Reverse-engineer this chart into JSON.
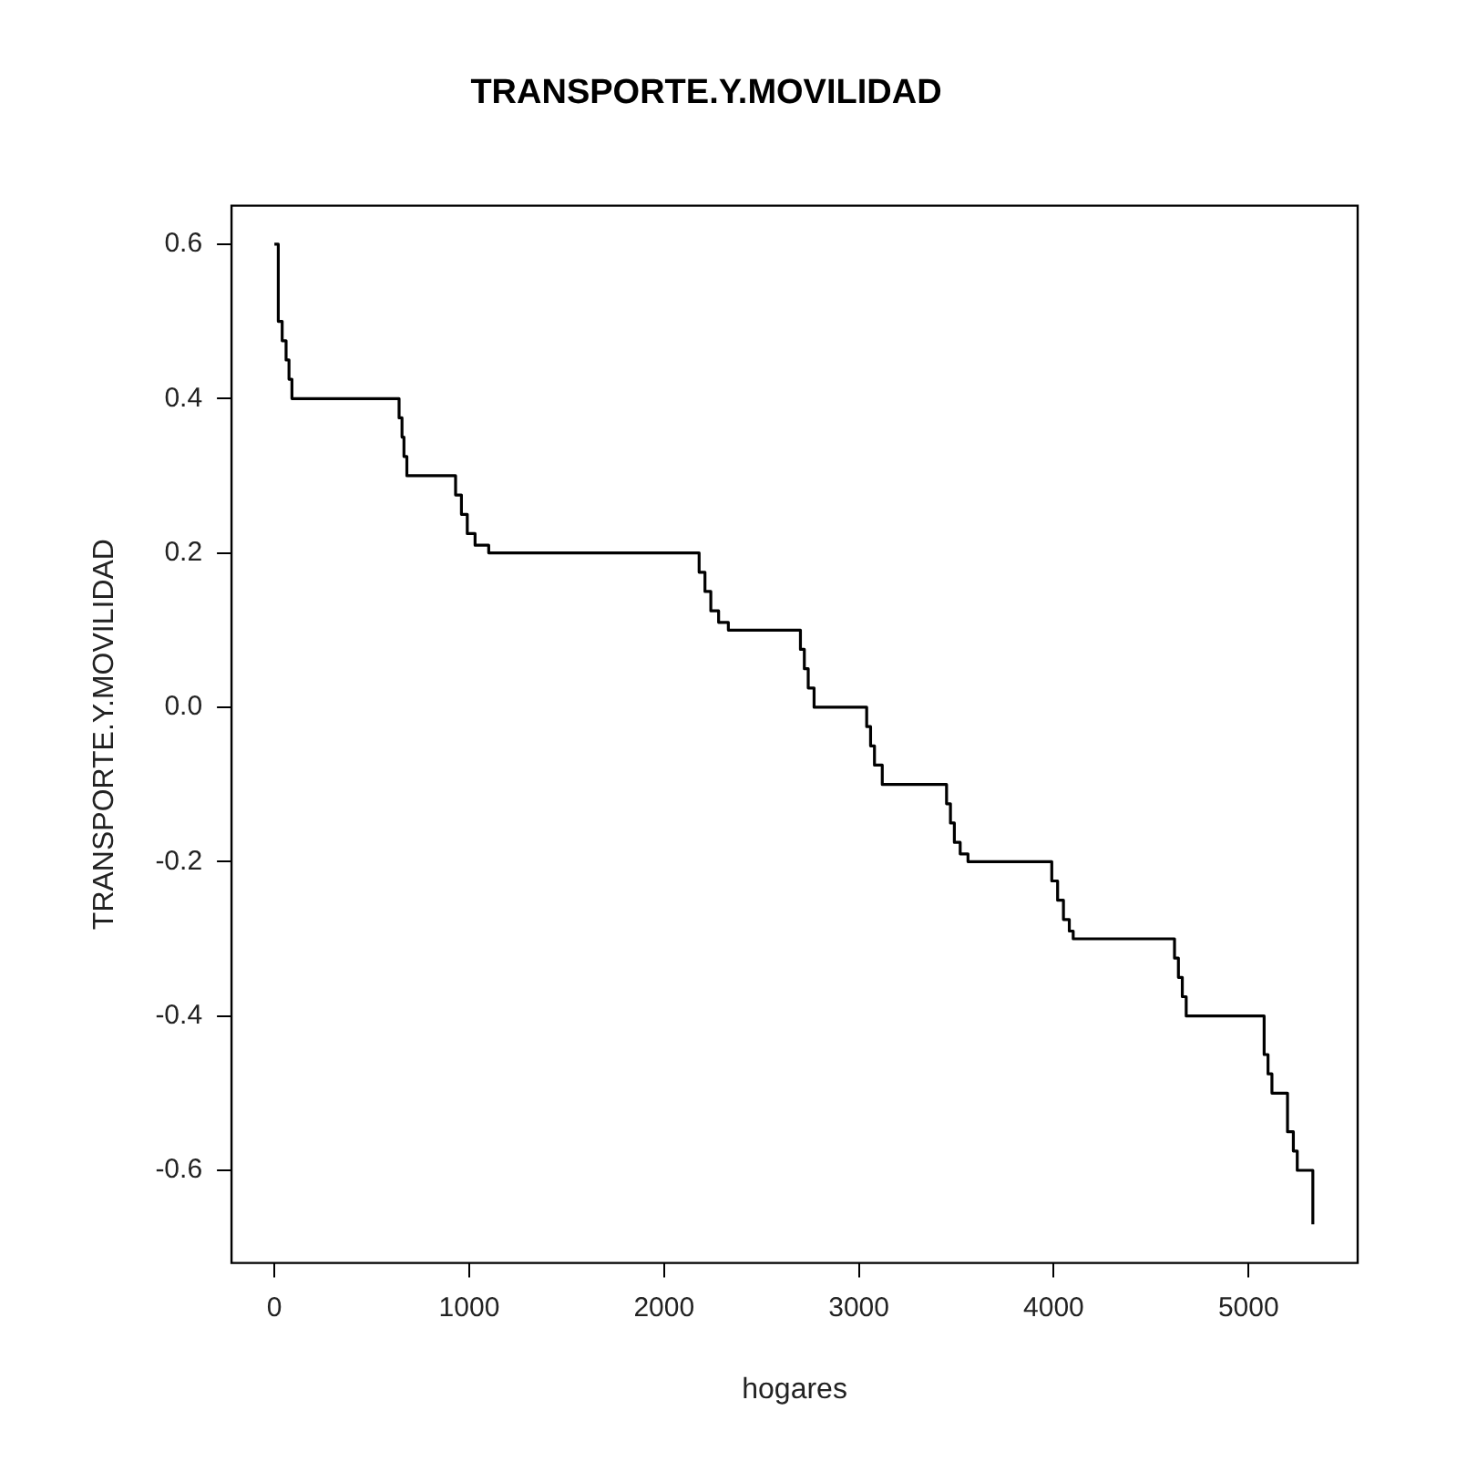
{
  "chart_data": {
    "type": "step",
    "title": "TRANSPORTE.Y.MOVILIDAD",
    "xlabel": "hogares",
    "ylabel": "TRANSPORTE.Y.MOVILIDAD",
    "x": [
      0,
      20,
      40,
      60,
      75,
      90,
      640,
      655,
      665,
      680,
      930,
      960,
      990,
      1030,
      1100,
      2180,
      2210,
      2240,
      2280,
      2330,
      2700,
      2720,
      2740,
      2770,
      3040,
      3060,
      3080,
      3120,
      3450,
      3470,
      3490,
      3520,
      3560,
      3990,
      4020,
      4050,
      4080,
      4100,
      4620,
      4640,
      4660,
      4680,
      5080,
      5100,
      5120,
      5200,
      5230,
      5250,
      5300,
      5330
    ],
    "series": [
      {
        "color": "#000000",
        "values": [
          0.6,
          0.5,
          0.475,
          0.45,
          0.425,
          0.4,
          0.375,
          0.35,
          0.325,
          0.3,
          0.275,
          0.25,
          0.225,
          0.21,
          0.2,
          0.175,
          0.15,
          0.125,
          0.11,
          0.1,
          0.075,
          0.05,
          0.025,
          0.0,
          -0.025,
          -0.05,
          -0.075,
          -0.1,
          -0.125,
          -0.15,
          -0.175,
          -0.19,
          -0.2,
          -0.225,
          -0.25,
          -0.275,
          -0.29,
          -0.3,
          -0.325,
          -0.35,
          -0.375,
          -0.4,
          -0.45,
          -0.475,
          -0.5,
          -0.55,
          -0.575,
          -0.6,
          -0.6,
          -0.67
        ]
      }
    ],
    "xlim": [
      -220,
      5560
    ],
    "ylim": [
      -0.72,
      0.65
    ],
    "xticks": [
      0,
      1000,
      2000,
      3000,
      4000,
      5000
    ],
    "yticks": [
      -0.6,
      -0.4,
      -0.2,
      {
        "value": 0,
        "label": "0.0"
      },
      0.2,
      0.4,
      0.6
    ],
    "grid": false,
    "legend": false,
    "marker": "none",
    "line_style": "solid"
  }
}
